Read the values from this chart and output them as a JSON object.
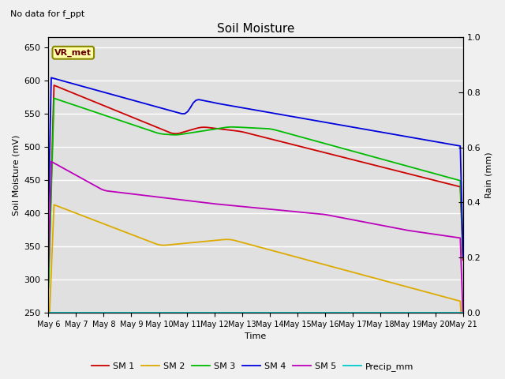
{
  "title": "Soil Moisture",
  "note": "No data for f_ppt",
  "ylabel_left": "Soil Moisture (mV)",
  "ylabel_right": "Rain (mm)",
  "xlabel": "Time",
  "ylim_left": [
    250,
    665
  ],
  "ylim_right": [
    0.0,
    1.0
  ],
  "yticks_left": [
    250,
    300,
    350,
    400,
    450,
    500,
    550,
    600,
    650
  ],
  "yticks_right": [
    0.0,
    0.2,
    0.4,
    0.6,
    0.8,
    1.0
  ],
  "xtick_labels": [
    "May 6",
    "May 7",
    "May 8",
    "May 9",
    "May 10",
    "May 11",
    "May 12",
    "May 13",
    "May 14",
    "May 15",
    "May 16",
    "May 17",
    "May 18",
    "May 19",
    "May 20",
    "May 21"
  ],
  "legend_labels": [
    "SM 1",
    "SM 2",
    "SM 3",
    "SM 4",
    "SM 5",
    "Precip_mm"
  ],
  "line_colors": [
    "#cc0000",
    "#ddaa00",
    "#00bb00",
    "#0000dd",
    "#bb00bb",
    "#00cccc"
  ],
  "vr_met_label": "VR_met",
  "background_color": "#e0e0e0",
  "fig_bg": "#f0f0f0",
  "n_points": 150
}
